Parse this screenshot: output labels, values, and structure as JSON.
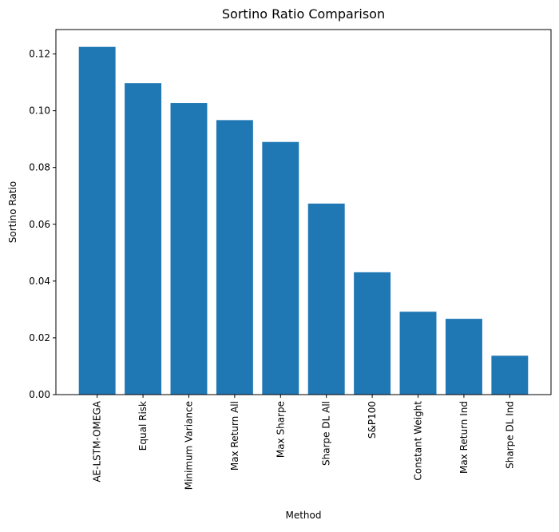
{
  "chart_data": {
    "type": "bar",
    "title": "Sortino Ratio Comparison",
    "xlabel": "Method",
    "ylabel": "Sortino Ratio",
    "categories": [
      "AE-LSTM-OMEGA",
      "Equal Risk",
      "Minimum Variance",
      "Max Return All",
      "Max Sharpe",
      "Sharpe DL All",
      "S&P100",
      "Constant Weight",
      "Max Return Ind",
      "Sharpe DL Ind"
    ],
    "values": [
      0.1225,
      0.1097,
      0.1027,
      0.0967,
      0.089,
      0.0673,
      0.0431,
      0.0292,
      0.0267,
      0.0137
    ],
    "ylim": [
      0,
      0.1286
    ],
    "yticks": [
      "0.00",
      "0.02",
      "0.04",
      "0.06",
      "0.08",
      "0.10",
      "0.12"
    ],
    "grid": false,
    "legend": "none",
    "bar_color": "#1f77b4"
  }
}
